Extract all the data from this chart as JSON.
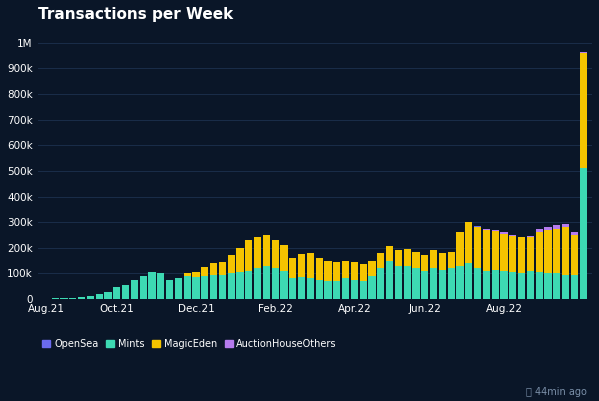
{
  "title": "Transactions per Week",
  "background_color": "#0a1628",
  "plot_bg_color": "#0a1628",
  "grid_color": "#1a2d4a",
  "text_color": "#ffffff",
  "colors": {
    "OpenSea": "#6b6bef",
    "Mints": "#3dd9b3",
    "MagicEden": "#f5c400",
    "AuctionHouseOthers": "#b57bee"
  },
  "xlabel_ticks": [
    "Aug.21",
    "Oct.21",
    "Dec.21",
    "Feb.22",
    "Apr.22",
    "Jun.22",
    "Aug.22"
  ],
  "xtick_positions": [
    0,
    8,
    17,
    26,
    35,
    43,
    52
  ],
  "ylim": [
    0,
    1050000
  ],
  "yticks": [
    0,
    100000,
    200000,
    300000,
    400000,
    500000,
    600000,
    700000,
    800000,
    900000,
    1000000
  ],
  "ytick_labels": [
    "0",
    "100k",
    "200k",
    "300k",
    "400k",
    "500k",
    "600k",
    "700k",
    "800k",
    "900k",
    "1M"
  ],
  "data": {
    "OpenSea": [
      0,
      0,
      0,
      0,
      0,
      0,
      0,
      0,
      0,
      0,
      0,
      0,
      0,
      0,
      0,
      0,
      0,
      0,
      0,
      0,
      0,
      0,
      0,
      0,
      0,
      0,
      0,
      0,
      0,
      0,
      0,
      0,
      0,
      0,
      0,
      0,
      0,
      0,
      0,
      0,
      0,
      0,
      0,
      0,
      0,
      0,
      0,
      0,
      0,
      3000,
      0,
      0,
      0,
      0,
      0,
      0,
      0,
      0,
      0,
      0,
      0,
      0
    ],
    "Mints": [
      1000,
      2000,
      3000,
      5000,
      8000,
      12000,
      18000,
      28000,
      45000,
      55000,
      75000,
      90000,
      105000,
      100000,
      75000,
      80000,
      90000,
      85000,
      90000,
      95000,
      95000,
      100000,
      105000,
      110000,
      120000,
      130000,
      120000,
      110000,
      80000,
      85000,
      80000,
      75000,
      70000,
      70000,
      80000,
      75000,
      70000,
      90000,
      120000,
      150000,
      130000,
      130000,
      120000,
      110000,
      120000,
      115000,
      120000,
      130000,
      140000,
      120000,
      110000,
      115000,
      110000,
      105000,
      100000,
      110000,
      105000,
      100000,
      100000,
      95000,
      95000,
      510000
    ],
    "MagicEden": [
      0,
      0,
      0,
      0,
      0,
      0,
      0,
      0,
      0,
      0,
      0,
      0,
      0,
      0,
      0,
      0,
      10000,
      20000,
      35000,
      45000,
      50000,
      70000,
      95000,
      120000,
      120000,
      120000,
      110000,
      100000,
      80000,
      90000,
      100000,
      85000,
      80000,
      75000,
      70000,
      70000,
      65000,
      60000,
      60000,
      55000,
      60000,
      65000,
      65000,
      60000,
      70000,
      65000,
      65000,
      130000,
      160000,
      160000,
      160000,
      150000,
      145000,
      140000,
      140000,
      130000,
      155000,
      170000,
      175000,
      185000,
      155000,
      450000
    ],
    "AuctionHouseOthers": [
      0,
      0,
      0,
      0,
      0,
      0,
      0,
      0,
      0,
      0,
      0,
      0,
      0,
      0,
      0,
      0,
      0,
      0,
      0,
      0,
      0,
      0,
      0,
      0,
      0,
      0,
      0,
      0,
      0,
      0,
      0,
      0,
      0,
      0,
      0,
      0,
      0,
      0,
      0,
      0,
      0,
      0,
      0,
      0,
      0,
      0,
      0,
      0,
      0,
      0,
      5000,
      3000,
      5000,
      6000,
      3000,
      6000,
      12000,
      12000,
      15000,
      12000,
      12000,
      3000
    ]
  },
  "legend": [
    {
      "label": "OpenSea",
      "color": "#6b6bef"
    },
    {
      "label": "Mints",
      "color": "#3dd9b3"
    },
    {
      "label": "MagicEden",
      "color": "#f5c400"
    },
    {
      "label": "AuctionHouseOthers",
      "color": "#b57bee"
    }
  ],
  "footer_text": "⌛ 44min ago"
}
